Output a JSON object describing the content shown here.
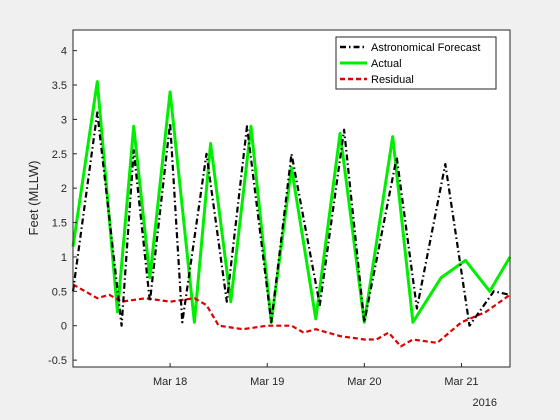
{
  "chart_data": {
    "type": "line",
    "title": "",
    "xlabel": "",
    "ylabel": "Feet (MLLW)",
    "year_label": "2016",
    "x_ticks": [
      "Mar 18",
      "Mar 19",
      "Mar 20",
      "Mar 21"
    ],
    "xlim": [
      "2016-03-17 00:00",
      "2016-03-21 12:00"
    ],
    "ylim": [
      -0.6,
      4.3
    ],
    "y_ticks": [
      "-0.5",
      "0",
      "0.5",
      "1",
      "1.5",
      "2",
      "2.5",
      "3",
      "3.5",
      "4"
    ],
    "grid": false,
    "legend_position": "top-right",
    "series": [
      {
        "name": "Astronomical Forecast",
        "color": "#000000",
        "style": "dash-dot",
        "x": [
          "2016-03-17 00:00",
          "2016-03-17 06:00",
          "2016-03-17 12:00",
          "2016-03-17 15:00",
          "2016-03-17 19:00",
          "2016-03-18 00:00",
          "2016-03-18 03:00",
          "2016-03-18 09:00",
          "2016-03-18 14:00",
          "2016-03-18 19:00",
          "2016-03-19 01:00",
          "2016-03-19 06:00",
          "2016-03-19 13:00",
          "2016-03-19 19:00",
          "2016-03-20 00:00",
          "2016-03-20 08:00",
          "2016-03-20 13:00",
          "2016-03-20 20:00",
          "2016-03-21 02:00",
          "2016-03-21 08:00",
          "2016-03-21 12:00"
        ],
        "y": [
          0.5,
          3.1,
          0.0,
          2.55,
          0.35,
          2.95,
          0.05,
          2.5,
          0.35,
          2.9,
          0.05,
          2.5,
          0.3,
          2.85,
          0.05,
          2.45,
          0.25,
          2.35,
          0.0,
          0.5,
          0.45
        ]
      },
      {
        "name": "Actual",
        "color": "#00ee00",
        "style": "solid",
        "x": [
          "2016-03-17 00:00",
          "2016-03-17 06:00",
          "2016-03-17 11:00",
          "2016-03-17 15:00",
          "2016-03-17 19:00",
          "2016-03-18 00:00",
          "2016-03-18 06:00",
          "2016-03-18 10:00",
          "2016-03-18 15:00",
          "2016-03-18 20:00",
          "2016-03-19 01:00",
          "2016-03-19 06:00",
          "2016-03-19 12:00",
          "2016-03-19 18:00",
          "2016-03-20 00:00",
          "2016-03-20 07:00",
          "2016-03-20 12:00",
          "2016-03-20 19:00",
          "2016-03-21 01:00",
          "2016-03-21 07:00",
          "2016-03-21 12:00"
        ],
        "y": [
          1.15,
          3.55,
          0.2,
          2.9,
          0.7,
          3.4,
          0.05,
          2.65,
          0.35,
          2.9,
          0.05,
          2.3,
          0.1,
          2.8,
          0.05,
          2.75,
          0.05,
          0.7,
          0.95,
          0.5,
          1.0
        ]
      },
      {
        "name": "Residual",
        "color": "#dd0000",
        "style": "dashed",
        "x": [
          "2016-03-17 00:00",
          "2016-03-17 03:00",
          "2016-03-17 06:00",
          "2016-03-17 09:00",
          "2016-03-17 12:00",
          "2016-03-17 18:00",
          "2016-03-18 00:00",
          "2016-03-18 06:00",
          "2016-03-18 09:00",
          "2016-03-18 12:00",
          "2016-03-18 18:00",
          "2016-03-19 00:00",
          "2016-03-19 06:00",
          "2016-03-19 09:00",
          "2016-03-19 12:00",
          "2016-03-19 18:00",
          "2016-03-20 00:00",
          "2016-03-20 03:00",
          "2016-03-20 06:00",
          "2016-03-20 09:00",
          "2016-03-20 12:00",
          "2016-03-20 18:00",
          "2016-03-21 00:00",
          "2016-03-21 06:00",
          "2016-03-21 12:00"
        ],
        "y": [
          0.6,
          0.5,
          0.4,
          0.45,
          0.35,
          0.4,
          0.35,
          0.4,
          0.3,
          0.0,
          -0.05,
          0.0,
          0.0,
          -0.1,
          -0.05,
          -0.15,
          -0.2,
          -0.2,
          -0.1,
          -0.3,
          -0.2,
          -0.25,
          0.05,
          0.2,
          0.45
        ]
      }
    ]
  }
}
